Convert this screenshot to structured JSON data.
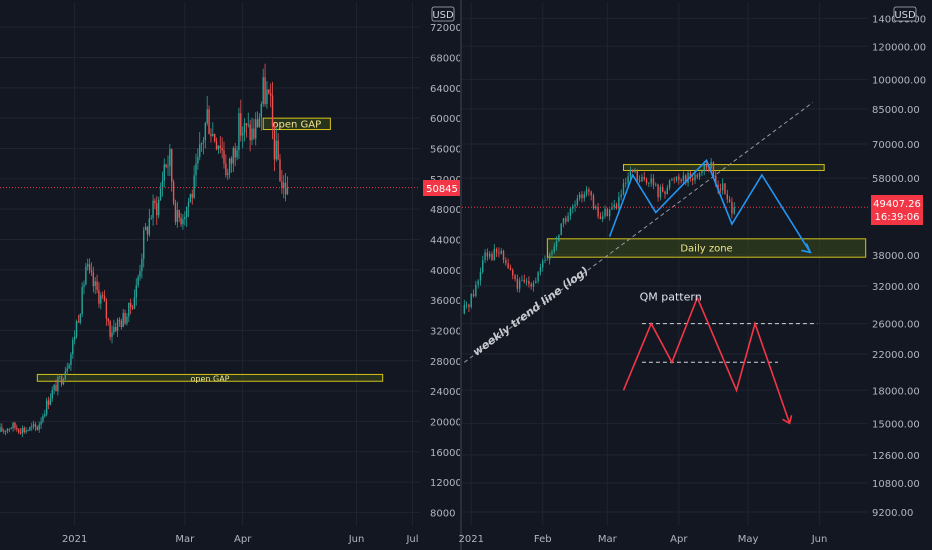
{
  "colors": {
    "background": "#131722",
    "grid": "#1f2430",
    "axis_text": "#b2b5be",
    "candle_up": "#26a69a",
    "candle_down": "#ef5350",
    "price_tag": "#f23645",
    "zone_border": "#d4c11a",
    "zone_fill": "#3a4a1c",
    "pattern_red": "#f23645",
    "pattern_blue": "#2196f3",
    "trend_line": "#9598a1",
    "pane_divider": "#2a2e39"
  },
  "chart_data": [
    {
      "type": "candlestick",
      "pane": "left",
      "currency_label": "USD",
      "y_scale": "linear",
      "ylim": [
        7000,
        74000
      ],
      "y_ticks": [
        8000,
        12000,
        16000,
        20000,
        24000,
        28000,
        32000,
        36000,
        40000,
        44000,
        48000,
        52000,
        56000,
        60000,
        64000,
        68000,
        72000
      ],
      "x_ticks": [
        {
          "label": "2021",
          "date": "2021-01-01"
        },
        {
          "label": "Mar",
          "date": "2021-03-01"
        },
        {
          "label": "Apr",
          "date": "2021-04-01"
        },
        {
          "label": "Jun",
          "date": "2021-06-01"
        },
        {
          "label": "Jul",
          "date": "2021-07-01"
        }
      ],
      "xlim": [
        "2020-11-22",
        "2021-07-05"
      ],
      "last_price_label": "50845",
      "last_price": 50845,
      "path_points": [
        [
          "2020-11-22",
          18600
        ],
        [
          "2020-11-29",
          19400
        ],
        [
          "2020-12-06",
          18900
        ],
        [
          "2020-12-13",
          19200
        ],
        [
          "2020-12-16",
          21000
        ],
        [
          "2020-12-20",
          23500
        ],
        [
          "2020-12-26",
          25800
        ],
        [
          "2020-12-31",
          29000
        ],
        [
          "2021-01-03",
          33000
        ],
        [
          "2021-01-06",
          36500
        ],
        [
          "2021-01-08",
          40500
        ],
        [
          "2021-01-10",
          39000
        ],
        [
          "2021-01-13",
          37500
        ],
        [
          "2021-01-17",
          36000
        ],
        [
          "2021-01-21",
          32000
        ],
        [
          "2021-01-24",
          32800
        ],
        [
          "2021-01-28",
          33500
        ],
        [
          "2021-01-31",
          34500
        ],
        [
          "2021-02-04",
          37500
        ],
        [
          "2021-02-08",
          44000
        ],
        [
          "2021-02-12",
          47500
        ],
        [
          "2021-02-16",
          49000
        ],
        [
          "2021-02-19",
          54000
        ],
        [
          "2021-02-22",
          54500
        ],
        [
          "2021-02-24",
          49500
        ],
        [
          "2021-02-26",
          46500
        ],
        [
          "2021-03-03",
          48500
        ],
        [
          "2021-03-07",
          51000
        ],
        [
          "2021-03-11",
          56500
        ],
        [
          "2021-03-14",
          60500
        ],
        [
          "2021-03-17",
          58000
        ],
        [
          "2021-03-21",
          57000
        ],
        [
          "2021-03-25",
          52500
        ],
        [
          "2021-03-28",
          55500
        ],
        [
          "2021-03-31",
          58800
        ],
        [
          "2021-04-04",
          58200
        ],
        [
          "2021-04-08",
          58000
        ],
        [
          "2021-04-11",
          60500
        ],
        [
          "2021-04-13",
          63500
        ],
        [
          "2021-04-15",
          63000
        ],
        [
          "2021-04-17",
          61000
        ],
        [
          "2021-04-19",
          56000
        ],
        [
          "2021-04-21",
          54500
        ],
        [
          "2021-04-23",
          51000
        ],
        [
          "2021-04-25",
          50845
        ]
      ],
      "zones": [
        {
          "label": "open GAP",
          "date_from": "2021-04-12",
          "date_to": "2021-05-18",
          "price_from": 58500,
          "price_to": 60000
        },
        {
          "label": "open GAP",
          "date_from": "2020-12-12",
          "date_to": "2021-06-15",
          "price_from": 25300,
          "price_to": 26200
        }
      ]
    },
    {
      "type": "candlestick",
      "pane": "right",
      "currency_label": "USD",
      "y_scale": "log",
      "ylim": [
        8800,
        145000
      ],
      "y_ticks": [
        {
          "label": "9200.00",
          "value": 9200
        },
        {
          "label": "10800.00",
          "value": 10800
        },
        {
          "label": "12600.00",
          "value": 12600
        },
        {
          "label": "15000.00",
          "value": 15000
        },
        {
          "label": "18000.00",
          "value": 18000
        },
        {
          "label": "22000.00",
          "value": 22000
        },
        {
          "label": "26000.00",
          "value": 26000
        },
        {
          "label": "32000.00",
          "value": 32000
        },
        {
          "label": "38000.00",
          "value": 38000
        },
        {
          "label": "58000.00",
          "value": 58000
        },
        {
          "label": "70000.00",
          "value": 70000
        },
        {
          "label": "85000.00",
          "value": 85000
        },
        {
          "label": "100000.00",
          "value": 100000
        },
        {
          "label": "120000.00",
          "value": 120000
        },
        {
          "label": "140000.00",
          "value": 140000
        }
      ],
      "x_ticks": [
        {
          "label": "2021",
          "date": "2021-01-01"
        },
        {
          "label": "Feb",
          "date": "2021-02-01"
        },
        {
          "label": "Mar",
          "date": "2021-03-01"
        },
        {
          "label": "Apr",
          "date": "2021-04-01"
        },
        {
          "label": "May",
          "date": "2021-05-01"
        },
        {
          "label": "Jun",
          "date": "2021-06-01"
        }
      ],
      "xlim": [
        "2020-12-28",
        "2021-06-22"
      ],
      "last_price_label": "49407.26",
      "countdown_label": "16:39:06",
      "last_price": 49407,
      "path_points": [
        [
          "2020-12-29",
          27500
        ],
        [
          "2021-01-02",
          30000
        ],
        [
          "2021-01-05",
          33000
        ],
        [
          "2021-01-08",
          39500
        ],
        [
          "2021-01-10",
          38000
        ],
        [
          "2021-01-14",
          38500
        ],
        [
          "2021-01-18",
          35500
        ],
        [
          "2021-01-22",
          32000
        ],
        [
          "2021-01-26",
          32500
        ],
        [
          "2021-01-30",
          33500
        ],
        [
          "2021-02-03",
          36500
        ],
        [
          "2021-02-07",
          39500
        ],
        [
          "2021-02-10",
          45000
        ],
        [
          "2021-02-14",
          48000
        ],
        [
          "2021-02-18",
          51500
        ],
        [
          "2021-02-21",
          56000
        ],
        [
          "2021-02-24",
          49000
        ],
        [
          "2021-02-27",
          46500
        ],
        [
          "2021-03-02",
          48500
        ],
        [
          "2021-03-06",
          50000
        ],
        [
          "2021-03-10",
          56000
        ],
        [
          "2021-03-13",
          60000
        ],
        [
          "2021-03-16",
          56500
        ],
        [
          "2021-03-20",
          58000
        ],
        [
          "2021-03-24",
          53500
        ],
        [
          "2021-03-28",
          55500
        ],
        [
          "2021-04-01",
          58800
        ],
        [
          "2021-04-05",
          58500
        ],
        [
          "2021-04-09",
          58000
        ],
        [
          "2021-04-13",
          63000
        ],
        [
          "2021-04-16",
          61500
        ],
        [
          "2021-04-18",
          56000
        ],
        [
          "2021-04-21",
          55000
        ],
        [
          "2021-04-23",
          51000
        ],
        [
          "2021-04-25",
          49407
        ]
      ],
      "zones": [
        {
          "label": "",
          "date_from": "2021-03-08",
          "date_to": "2021-06-03",
          "price_from": 60500,
          "price_to": 62500
        },
        {
          "label": "Daily zone",
          "date_from": "2021-02-03",
          "date_to": "2021-06-21",
          "price_from": 37500,
          "price_to": 41500
        }
      ],
      "trend_line": {
        "label": "weekly trend line (log)",
        "from": [
          "2020-12-29",
          21000
        ],
        "to": [
          "2021-05-29",
          88000
        ]
      },
      "blue_path": [
        [
          "2021-03-02",
          42000
        ],
        [
          "2021-03-12",
          59000
        ],
        [
          "2021-03-22",
          48000
        ],
        [
          "2021-04-13",
          64000
        ],
        [
          "2021-04-24",
          45000
        ],
        [
          "2021-05-07",
          59000
        ],
        [
          "2021-05-28",
          38500
        ]
      ],
      "qm_pattern": {
        "label": "QM pattern",
        "path": [
          [
            "2021-03-08",
            18000
          ],
          [
            "2021-03-20",
            26000
          ],
          [
            "2021-03-29",
            21000
          ],
          [
            "2021-04-09",
            30000
          ],
          [
            "2021-04-26",
            18000
          ],
          [
            "2021-05-04",
            26000
          ],
          [
            "2021-05-19",
            15000
          ]
        ],
        "levels": [
          {
            "price": 26000,
            "date_from": "2021-03-16",
            "date_to": "2021-05-31"
          },
          {
            "price": 21000,
            "date_from": "2021-03-16",
            "date_to": "2021-05-14"
          }
        ]
      }
    }
  ]
}
